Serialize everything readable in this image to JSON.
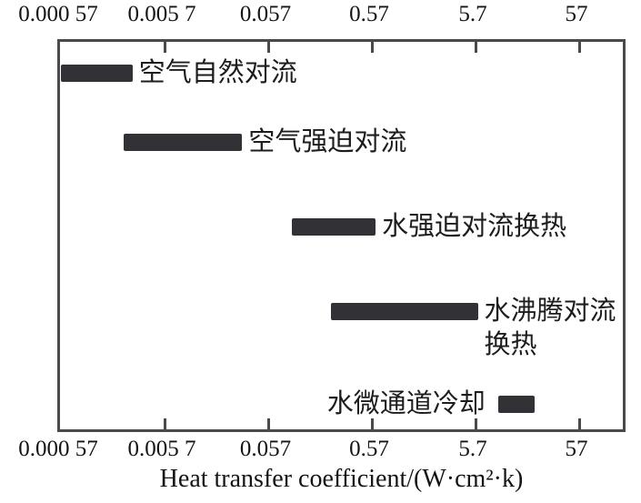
{
  "chart_data": {
    "type": "bar",
    "orientation": "horizontal-range-bars",
    "scale": "log",
    "xlabel": "Heat transfer coefficient/(W·cm²·k)",
    "axis_tick_labels": [
      "0.000 57",
      "0.005 7",
      "0.057",
      "0.57",
      "5.7",
      "57"
    ],
    "axis_tick_values": [
      0.00057,
      0.0057,
      0.057,
      0.57,
      5.7,
      57
    ],
    "xlim": [
      0.00057,
      170
    ],
    "axes": "top-and-bottom",
    "grid": false,
    "bar_color": "#323236",
    "frame_color": "#4a4a4c",
    "series": [
      {
        "label": "空气自然对流",
        "min": 0.00057,
        "max": 0.0028,
        "label_side": "right"
      },
      {
        "label": "空气强迫对流",
        "min": 0.0023,
        "max": 0.032,
        "label_side": "right"
      },
      {
        "label": "水强迫对流换热",
        "min": 0.096,
        "max": 0.62,
        "label_side": "right"
      },
      {
        "label": "水沸腾对流换热",
        "min": 0.23,
        "max": 6.0,
        "label_side": "right",
        "label_lines": [
          "水沸腾对流",
          "换热"
        ]
      },
      {
        "label": "水微通道冷却",
        "min": 9.4,
        "max": 21,
        "label_side": "left"
      }
    ]
  }
}
